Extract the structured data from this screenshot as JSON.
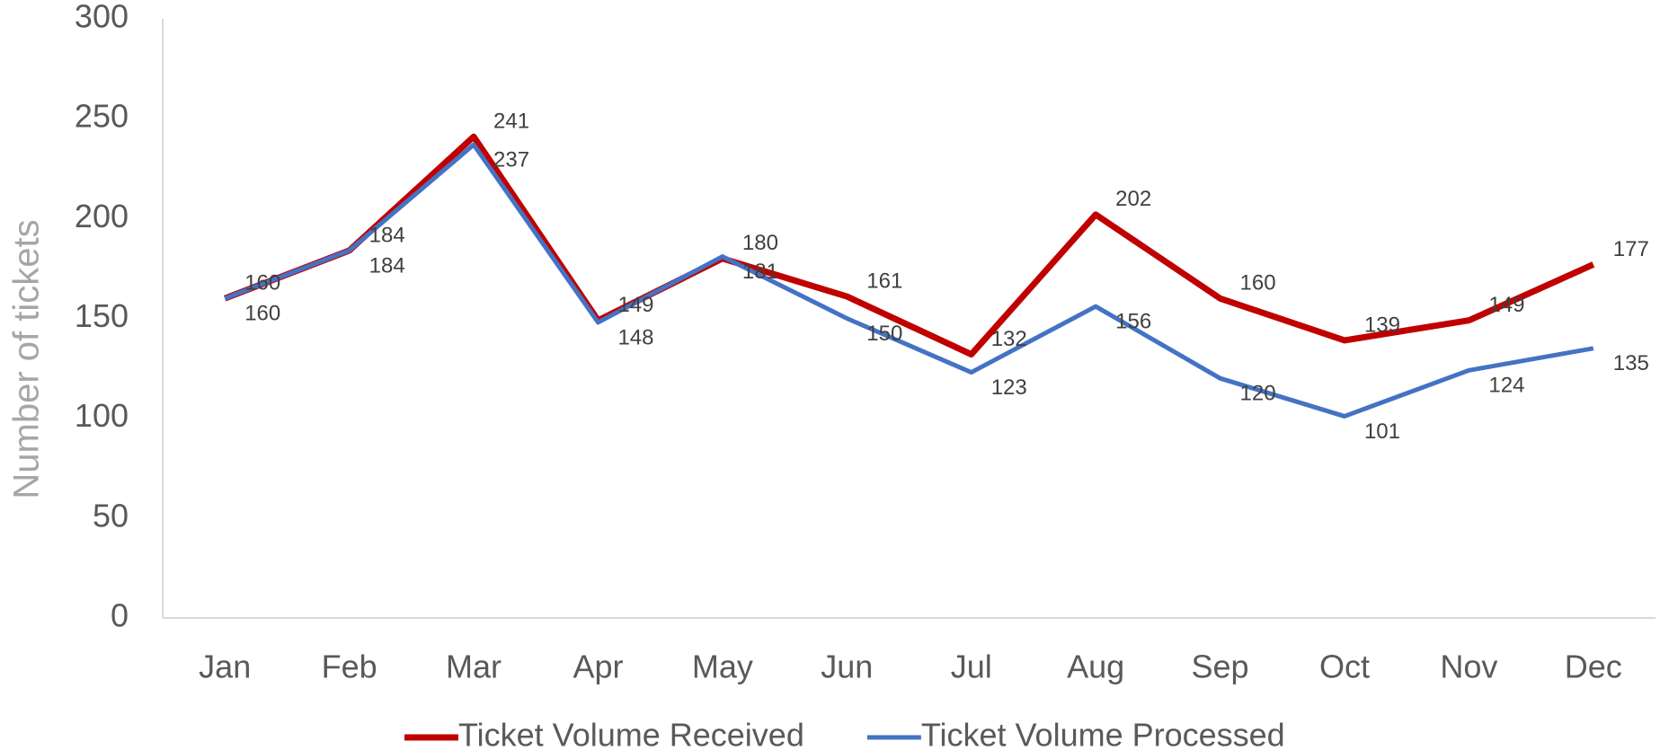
{
  "chart_data": {
    "type": "line",
    "y_label": "Number of tickets",
    "categories": [
      "Jan",
      "Feb",
      "Mar",
      "Apr",
      "May",
      "Jun",
      "Jul",
      "Aug",
      "Sep",
      "Oct",
      "Nov",
      "Dec"
    ],
    "series": [
      {
        "name": "Ticket Volume Received",
        "color": "#c00000",
        "values": [
          160,
          184,
          241,
          149,
          180,
          161,
          132,
          202,
          160,
          139,
          149,
          177
        ]
      },
      {
        "name": "Ticket Volume Processed",
        "color": "#4472c4",
        "values": [
          160,
          184,
          237,
          148,
          181,
          150,
          123,
          156,
          120,
          101,
          124,
          135
        ]
      }
    ],
    "ylim": [
      0,
      300
    ],
    "yticks": [
      0,
      50,
      100,
      150,
      200,
      250,
      300
    ],
    "grid": false,
    "legend": "bottom"
  }
}
